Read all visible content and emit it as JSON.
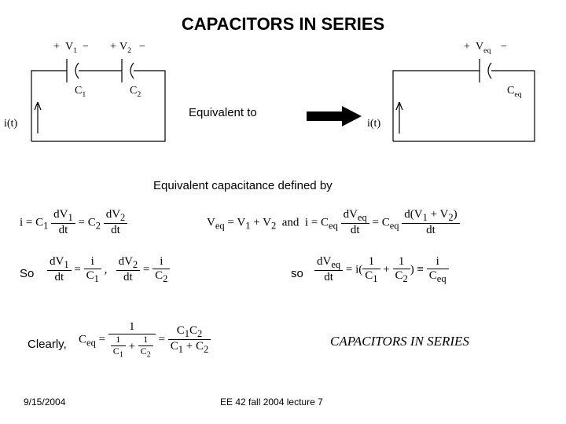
{
  "title": "CAPACITORS IN SERIES",
  "circuit": {
    "source_label": "i(t)",
    "left": {
      "v1": {
        "plus": "+",
        "label": "V",
        "sub": "1",
        "minus": "−"
      },
      "v2": {
        "plus": "+",
        "label": "V",
        "sub": "2",
        "minus": "−"
      },
      "c1": {
        "label": "C",
        "sub": "1"
      },
      "c2": {
        "label": "C",
        "sub": "2"
      }
    },
    "middle_text": "Equivalent to",
    "right": {
      "veq": {
        "plus": "+",
        "label": "V",
        "sub": "eq",
        "minus": "−"
      },
      "ceq": {
        "label": "C",
        "sub": "eq"
      }
    },
    "stroke": "#000000",
    "stroke_width": 1.2
  },
  "definition_text": "Equivalent capacitance defined by",
  "formulas": {
    "line1_left": "i = C<sub>1</sub> <span class='frac'><span class='num'>dV<sub>1</sub></span><span class='den'>dt</span></span> = C<sub>2</sub> <span class='frac'><span class='num'>dV<sub>2</sub></span><span class='den'>dt</span></span>",
    "line1_right": "V<sub>eq</sub> = V<sub>1</sub> + V<sub>2</sub>&nbsp;&nbsp;and&nbsp;&nbsp;i = C<sub>eq</sub> <span class='frac'><span class='num'>dV<sub>eq</sub></span><span class='den'>dt</span></span> = C<sub>eq</sub> <span class='frac'><span class='num'>d(V<sub>1</sub> + V<sub>2</sub>)</span><span class='den'>dt</span></span>",
    "line2_left_prefix": "So",
    "line2_left": "<span class='frac'><span class='num'>dV<sub>1</sub></span><span class='den'>dt</span></span> = <span class='frac'><span class='num'>i</span><span class='den'>C<sub>1</sub></span></span> ,&nbsp;&nbsp; <span class='frac'><span class='num'>dV<sub>2</sub></span><span class='den'>dt</span></span> = <span class='frac'><span class='num'>i</span><span class='den'>C<sub>2</sub></span></span>",
    "line2_right_prefix": "so",
    "line2_right": "<span class='frac'><span class='num'>dV<sub>eq</sub></span><span class='den'>dt</span></span> = i(<span class='frac'><span class='num'>1</span><span class='den'>C<sub>1</sub></span></span> + <span class='frac'><span class='num'>1</span><span class='den'>C<sub>2</sub></span></span>) ≡ <span class='frac'><span class='num'>i</span><span class='den'>C<sub>eq</sub></span></span>",
    "clearly_prefix": "Clearly,",
    "clearly": "C<sub>eq</sub> = <span class='frac'><span class='num'>1</span><span class='den'><span class='frac' style='font-size:12px'><span class='num' style='border:0'>1</span><span class='den' style='border-top:1px solid #000'>C<sub>1</sub></span></span> + <span class='frac' style='font-size:12px'><span class='num' style='border:0'>1</span><span class='den' style='border-top:1px solid #000'>C<sub>2</sub></span></span></span></span> = <span class='frac'><span class='num'>C<sub>1</sub>C<sub>2</sub></span><span class='den'>C<sub>1</sub> + C<sub>2</sub></span></span>",
    "series_caption": "CAPACITORS IN SERIES"
  },
  "footer": {
    "date": "9/15/2004",
    "center": "EE 42 fall 2004 lecture 7"
  }
}
